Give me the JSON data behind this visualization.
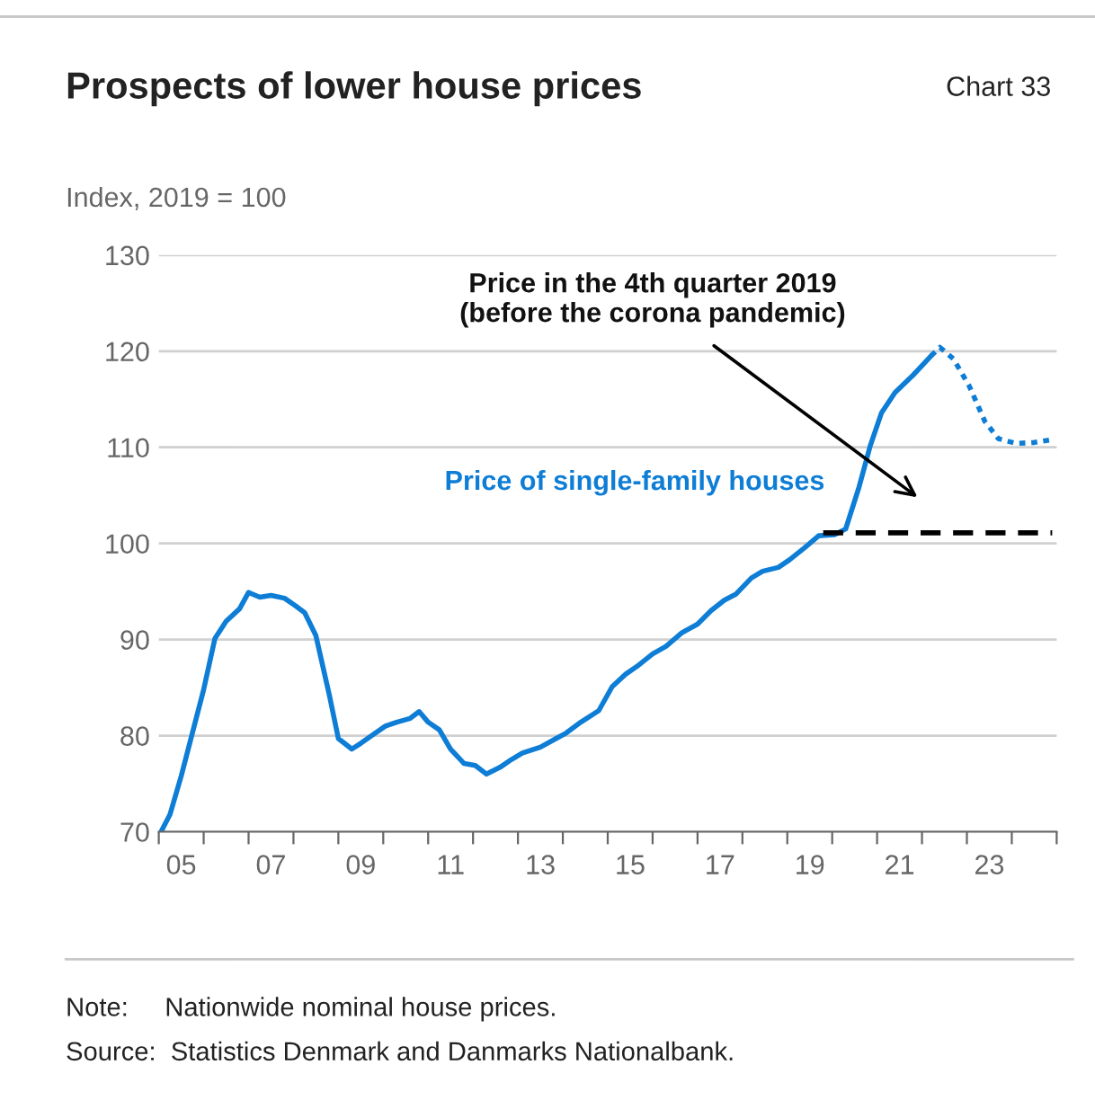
{
  "chart_data": {
    "type": "line",
    "title": "Prospects of lower house prices",
    "ylabel": "Index, 2019 = 100",
    "annotations": [
      "Chart 33",
      "Price in the 4th quarter 2019\n(before the corona pandemic)",
      "Note:     Nationwide nominal house prices.",
      "Source:  Statistics Denmark and Danmarks Nationalbank."
    ],
    "series": [
      {
        "name": "Price of single-family houses",
        "color": "#0d7dd6",
        "line_style": "solid",
        "x": [
          2004.55,
          2004.75,
          2005.0,
          2005.5,
          2005.75,
          2006.0,
          2006.3,
          2006.5,
          2006.75,
          2007.0,
          2007.3,
          2007.55,
          2007.75,
          2008.0,
          2008.3,
          2008.5,
          2008.8,
          2009.0,
          2009.3,
          2009.55,
          2009.8,
          2010.1,
          2010.3,
          2010.5,
          2010.75,
          2011.0,
          2011.3,
          2011.55,
          2011.8,
          2012.1,
          2012.35,
          2012.6,
          2013.0,
          2013.35,
          2013.55,
          2013.9,
          2014.3,
          2014.6,
          2014.9,
          2015.15,
          2015.5,
          2015.8,
          2016.15,
          2016.5,
          2016.8,
          2017.1,
          2017.35,
          2017.7,
          2017.95,
          2018.3,
          2018.55,
          2018.9,
          2019.2,
          2019.55,
          2019.8,
          2020.1,
          2020.35,
          2020.6,
          2020.9,
          2021.3,
          2021.7
        ],
        "values": [
          70.0,
          71.8,
          75.8,
          84.8,
          90.1,
          91.9,
          93.2,
          94.9,
          94.4,
          94.6,
          94.3,
          93.5,
          92.8,
          90.4,
          84.2,
          79.7,
          78.6,
          79.2,
          80.2,
          81.0,
          81.4,
          81.8,
          82.5,
          81.4,
          80.6,
          78.6,
          77.1,
          76.9,
          76.0,
          76.7,
          77.5,
          78.2,
          78.8,
          79.7,
          80.2,
          81.4,
          82.6,
          85.1,
          86.4,
          87.2,
          88.5,
          89.3,
          90.7,
          91.6,
          93.0,
          94.1,
          94.7,
          96.4,
          97.1,
          97.5,
          98.3,
          99.6,
          100.8,
          100.9,
          101.5,
          105.9,
          110.2,
          113.6,
          115.7,
          117.5,
          119.5
        ]
      },
      {
        "color": "#0d7dd6",
        "line_style": "dotted",
        "x": [
          2021.7,
          2021.9,
          2022.2,
          2022.55,
          2022.9,
          2023.2,
          2023.6,
          2024.0,
          2024.4
        ],
        "values": [
          119.5,
          120.4,
          119.2,
          116.4,
          112.7,
          110.9,
          110.4,
          110.5,
          110.8
        ]
      },
      {
        "color": "#000000",
        "line_style": "dashed",
        "x": [
          2019.3,
          2024.4
        ],
        "values": [
          101.1,
          101.1
        ]
      }
    ],
    "xlim": [
      2004.5,
      2024.5
    ],
    "xticks": [
      {
        "value": 2004.5,
        "label": null
      },
      {
        "value": 2005,
        "label": "05"
      },
      {
        "value": 2005.5,
        "label": null
      },
      {
        "value": 2006.5,
        "label": null
      },
      {
        "value": 2007,
        "label": "07"
      },
      {
        "value": 2007.5,
        "label": null
      },
      {
        "value": 2008.5,
        "label": null
      },
      {
        "value": 2009,
        "label": "09"
      },
      {
        "value": 2009.5,
        "label": null
      },
      {
        "value": 2010.5,
        "label": null
      },
      {
        "value": 2011,
        "label": "11"
      },
      {
        "value": 2011.5,
        "label": null
      },
      {
        "value": 2012.5,
        "label": null
      },
      {
        "value": 2013,
        "label": "13"
      },
      {
        "value": 2013.5,
        "label": null
      },
      {
        "value": 2014.5,
        "label": null
      },
      {
        "value": 2015,
        "label": "15"
      },
      {
        "value": 2015.5,
        "label": null
      },
      {
        "value": 2016.5,
        "label": null
      },
      {
        "value": 2017,
        "label": "17"
      },
      {
        "value": 2017.5,
        "label": null
      },
      {
        "value": 2018.5,
        "label": null
      },
      {
        "value": 2019,
        "label": "19"
      },
      {
        "value": 2019.5,
        "label": null
      },
      {
        "value": 2020.5,
        "label": null
      },
      {
        "value": 2021,
        "label": "21"
      },
      {
        "value": 2021.5,
        "label": null
      },
      {
        "value": 2022.5,
        "label": null
      },
      {
        "value": 2023,
        "label": "23"
      },
      {
        "value": 2023.5,
        "label": null
      },
      {
        "value": 2024.5,
        "label": null
      }
    ],
    "ylim": [
      70,
      130
    ],
    "yticks": [
      70,
      80,
      90,
      100,
      110,
      120,
      130
    ],
    "grid": "y",
    "legend": false
  }
}
